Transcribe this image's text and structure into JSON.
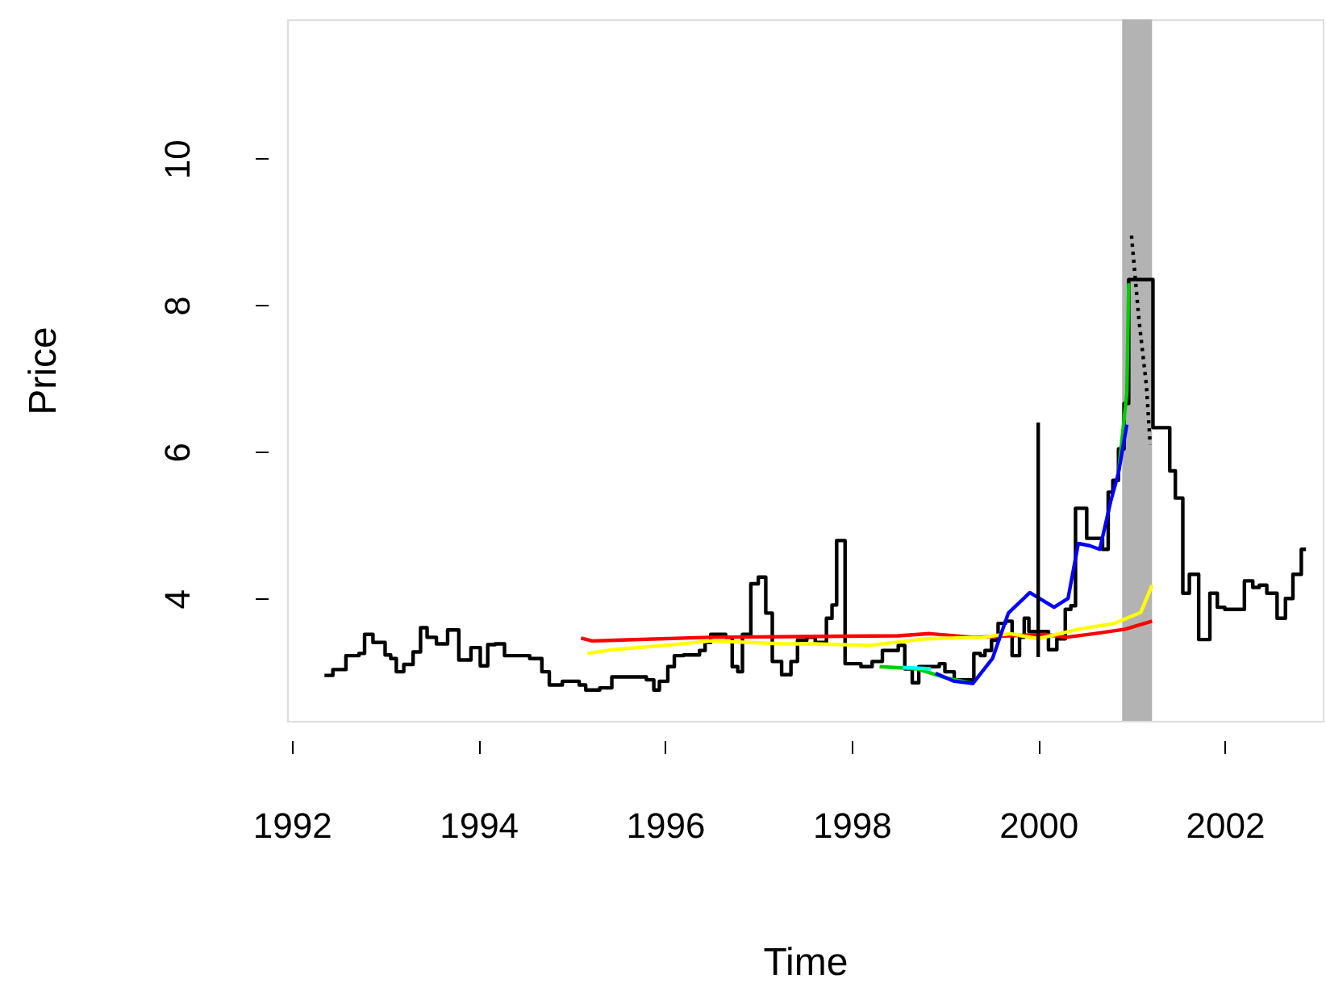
{
  "chart_data": {
    "type": "line",
    "xlabel": "Time",
    "ylabel": "Price",
    "xlim": [
      1991.95,
      2003.05
    ],
    "ylim": [
      2.33,
      11.9
    ],
    "xticks": [
      1992,
      1994,
      1996,
      1998,
      2000,
      2002
    ],
    "yticks": [
      4,
      6,
      8,
      10
    ],
    "bands": [
      {
        "axis": "x",
        "from": 2000.9,
        "to": 2001.22,
        "color": "#b3b3b3"
      }
    ],
    "series": [
      {
        "type": "step",
        "color": "#000000",
        "x": [
          1992.35,
          1992.44,
          1992.58,
          1992.72,
          1992.78,
          1992.87,
          1993.0,
          1993.06,
          1993.12,
          1993.2,
          1993.3,
          1993.38,
          1993.45,
          1993.55,
          1993.67,
          1993.79,
          1993.92,
          1994.02,
          1994.1,
          1994.18,
          1994.28,
          1994.55,
          1994.68,
          1994.76,
          1994.9,
          1995.08,
          1995.15,
          1995.3,
          1995.43,
          1995.8,
          1995.88,
          1995.94,
          1996.03,
          1996.1,
          1996.2,
          1996.37,
          1996.43,
          1996.49,
          1996.65,
          1996.72,
          1996.78,
          1996.83,
          1996.92,
          1997.0,
          1997.08,
          1997.15,
          1997.25,
          1997.35,
          1997.42,
          1997.52,
          1997.61,
          1997.73,
          1997.79,
          1997.84,
          1997.93,
          1998.1,
          1998.22,
          1998.33,
          1998.5,
          1998.57,
          1998.65,
          1998.72,
          1998.94,
          1999.0,
          1999.1,
          1999.31,
          1999.38,
          1999.43,
          1999.5,
          1999.57,
          1999.65,
          1999.72,
          1999.8,
          1999.85,
          1999.9,
          2000.11,
          2000.2,
          2000.29,
          2000.35,
          2000.4,
          2000.52,
          2000.69,
          2000.75,
          2000.8,
          2000.86,
          2000.92,
          2000.97,
          2001.23,
          2001.41,
          2001.47,
          2001.55,
          2001.62,
          2001.72,
          2001.84,
          2001.92,
          2002.0,
          2002.21,
          2002.3,
          2002.37,
          2002.45,
          2002.56,
          2002.65,
          2002.73,
          2002.82,
          2002.87
        ],
        "values": [
          2.95,
          3.03,
          3.22,
          3.25,
          3.51,
          3.4,
          3.23,
          3.18,
          3.0,
          3.1,
          3.27,
          3.6,
          3.47,
          3.38,
          3.57,
          3.16,
          3.33,
          3.08,
          3.37,
          3.38,
          3.22,
          3.18,
          3.0,
          2.82,
          2.87,
          2.82,
          2.75,
          2.78,
          2.93,
          2.89,
          2.75,
          2.87,
          3.07,
          3.22,
          3.23,
          3.29,
          3.4,
          3.51,
          3.47,
          3.07,
          3.0,
          3.51,
          4.2,
          4.29,
          3.8,
          3.14,
          2.96,
          3.14,
          3.43,
          3.47,
          3.4,
          3.73,
          3.91,
          4.79,
          3.11,
          3.07,
          3.14,
          3.29,
          3.36,
          3.04,
          2.85,
          3.07,
          3.11,
          3.0,
          2.89,
          3.25,
          3.22,
          3.29,
          3.43,
          3.66,
          3.69,
          3.22,
          3.47,
          3.73,
          3.55,
          3.3,
          3.45,
          3.85,
          3.9,
          5.23,
          4.82,
          4.67,
          5.45,
          5.61,
          6.04,
          6.66,
          8.35,
          6.33,
          5.74,
          5.37,
          4.07,
          4.33,
          3.44,
          4.07,
          3.88,
          3.85,
          4.24,
          4.15,
          4.18,
          4.07,
          3.73,
          4.0,
          4.33,
          4.67,
          4.67
        ]
      },
      {
        "color": "#ff0000",
        "x": [
          1995.1,
          1995.22,
          1996.48,
          1998.5,
          1998.84,
          1999.3,
          2000.07,
          2000.3,
          2000.6,
          2000.93,
          2001.22
        ],
        "values": [
          3.46,
          3.42,
          3.47,
          3.49,
          3.52,
          3.47,
          3.51,
          3.47,
          3.52,
          3.58,
          3.69
        ]
      },
      {
        "color": "#ffff00",
        "x": [
          1995.17,
          1995.43,
          1996.0,
          1996.5,
          1997.27,
          1997.6,
          1998.2,
          1998.8,
          1999.4,
          1999.7,
          2000.0,
          2000.43,
          2000.82,
          2001.1,
          2001.22
        ],
        "values": [
          3.25,
          3.3,
          3.36,
          3.42,
          3.38,
          3.38,
          3.36,
          3.45,
          3.47,
          3.52,
          3.45,
          3.58,
          3.66,
          3.81,
          4.18
        ]
      },
      {
        "color": "#00cd00",
        "x": [
          1998.3,
          1998.7,
          1999.0,
          1999.3,
          1999.51,
          1999.68,
          1999.91,
          2000.17,
          2000.32,
          2000.43,
          2000.55,
          2000.66,
          2000.78,
          2000.86,
          2000.95,
          2000.97
        ],
        "values": [
          3.07,
          3.04,
          2.92,
          2.84,
          null,
          null,
          null,
          null,
          null,
          null,
          null,
          null,
          null,
          5.71,
          6.8,
          8.3
        ]
      },
      {
        "color": "#00ffff",
        "x": [
          1998.55,
          1998.85
        ],
        "values": [
          3.06,
          3.04
        ]
      },
      {
        "color": "#0000ff",
        "x": [
          1998.9,
          1999.1,
          1999.3,
          1999.51,
          1999.68,
          1999.91,
          2000.17,
          2000.32,
          2000.43,
          2000.55,
          2000.66,
          2000.78,
          2000.86,
          2000.95
        ],
        "values": [
          2.98,
          2.87,
          2.84,
          3.18,
          3.8,
          4.08,
          3.88,
          4.0,
          4.75,
          4.72,
          4.67,
          5.34,
          5.71,
          6.37
        ]
      },
      {
        "color": "#000000",
        "x": [
          2000.0,
          2000.0
        ],
        "values": [
          3.2,
          6.4
        ]
      },
      {
        "color": "#000000",
        "line_style": "dotted",
        "x": [
          2001.0,
          2001.08,
          2001.16,
          2001.2
        ],
        "values": [
          8.95,
          7.8,
          6.9,
          6.1
        ]
      }
    ]
  }
}
